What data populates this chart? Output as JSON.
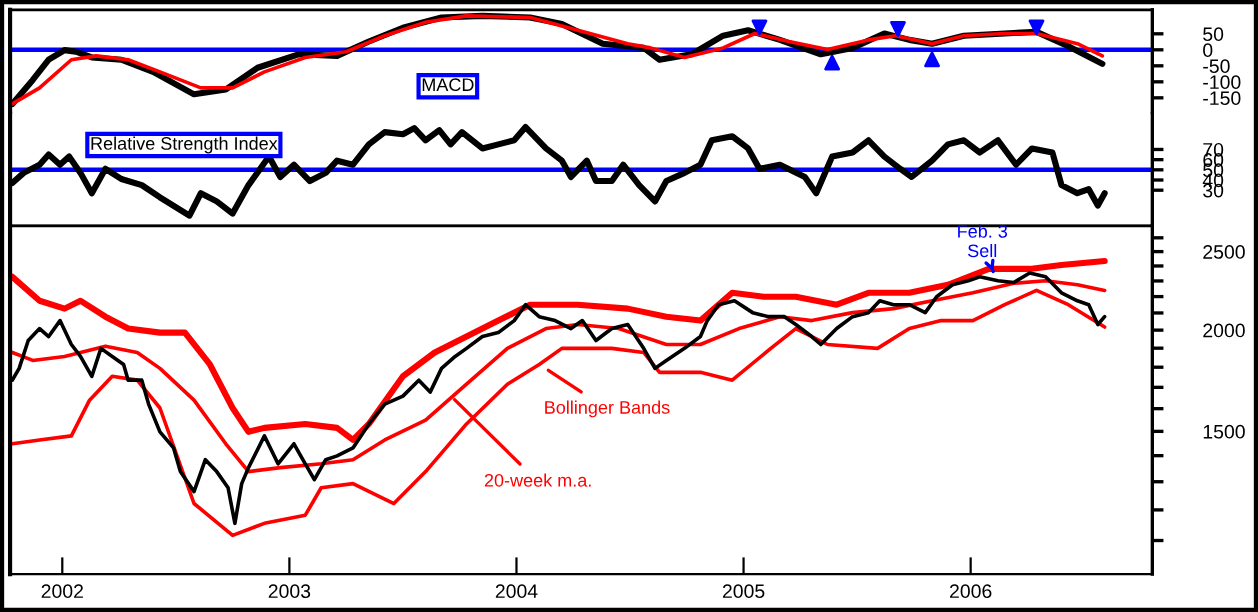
{
  "chart_data": [
    {
      "type": "line",
      "xlim": [
        2001.77,
        2006.8
      ],
      "ylim": [
        -200,
        125
      ],
      "yticks": [
        50,
        0,
        -50,
        -100,
        -150
      ],
      "tick_labels": "y",
      "legend": false,
      "grid": false,
      "annotations": [
        "MACD"
      ],
      "ref_lines": [
        {
          "axis": "y",
          "value": 0,
          "color": "#0000ff"
        }
      ],
      "series": [
        {
          "color": "#000000",
          "x": [
            2001.78,
            2001.87,
            2001.94,
            2002.01,
            2002.06,
            2002.13,
            2002.26,
            2002.4,
            2002.58,
            2002.72,
            2002.86,
            2003.04,
            2003.21,
            2003.35,
            2003.5,
            2003.67,
            2003.85,
            2004.06,
            2004.2,
            2004.38,
            2004.56,
            2004.63,
            2004.77,
            2004.91,
            2005.02,
            2005.16,
            2005.34,
            2005.48,
            2005.62,
            2005.73,
            2005.83,
            2005.97,
            2006.15,
            2006.29,
            2006.43,
            2006.58
          ],
          "values": [
            -169,
            -94,
            -31,
            -1,
            -6,
            -24,
            -31,
            -69,
            -139,
            -124,
            -56,
            -14,
            -19,
            26,
            69,
            101,
            106,
            101,
            81,
            19,
            6,
            -31,
            -14,
            44,
            61,
            31,
            -14,
            6,
            51,
            31,
            19,
            44,
            51,
            56,
            11,
            -44
          ]
        },
        {
          "color": "#ff0000",
          "x": [
            2001.78,
            2001.9,
            2002.04,
            2002.15,
            2002.29,
            2002.43,
            2002.61,
            2002.75,
            2002.89,
            2003.07,
            2003.25,
            2003.42,
            2003.6,
            2003.78,
            2004.06,
            2004.27,
            2004.49,
            2004.59,
            2004.74,
            2004.91,
            2005.05,
            2005.2,
            2005.37,
            2005.55,
            2005.67,
            2005.83,
            2005.97,
            2006.15,
            2006.29,
            2006.47,
            2006.58
          ],
          "values": [
            -169,
            -119,
            -31,
            -19,
            -31,
            -69,
            -119,
            -119,
            -69,
            -24,
            -6,
            44,
            86,
            106,
            101,
            61,
            19,
            6,
            -24,
            6,
            51,
            26,
            1,
            31,
            44,
            19,
            44,
            51,
            51,
            19,
            -19
          ]
        },
        {
          "type": "scatter",
          "marker": "triangle_down",
          "color": "#0000ff",
          "x": [
            2005.07,
            2005.68,
            2006.29
          ],
          "values": [
            70,
            65,
            70
          ]
        },
        {
          "type": "scatter",
          "marker": "triangle",
          "color": "#0000ff",
          "x": [
            2005.39,
            2005.83
          ],
          "values": [
            -40,
            -30
          ]
        }
      ]
    },
    {
      "type": "line",
      "xlim": [
        2001.77,
        2006.8
      ],
      "ylim": [
        -5,
        105
      ],
      "yticks": [
        70,
        60,
        50,
        40,
        30
      ],
      "tick_labels": "y",
      "legend": false,
      "grid": false,
      "annotations": [
        "Relative Strength Index"
      ],
      "ref_lines": [
        {
          "axis": "y",
          "value": 50,
          "color": "#0000ff"
        }
      ],
      "series": [
        {
          "color": "#000000",
          "x": [
            2001.78,
            2001.83,
            2001.9,
            2001.94,
            2001.99,
            2002.03,
            2002.08,
            2002.13,
            2002.19,
            2002.26,
            2002.35,
            2002.43,
            2002.56,
            2002.61,
            2002.68,
            2002.75,
            2002.82,
            2002.91,
            2002.96,
            2003.02,
            2003.09,
            2003.16,
            2003.21,
            2003.28,
            2003.35,
            2003.42,
            2003.5,
            2003.55,
            2003.6,
            2003.66,
            2003.71,
            2003.76,
            2003.85,
            2003.92,
            2003.99,
            2004.04,
            2004.13,
            2004.2,
            2004.24,
            2004.31,
            2004.35,
            2004.42,
            2004.47,
            2004.54,
            2004.61,
            2004.66,
            2004.74,
            2004.81,
            2004.86,
            2004.95,
            2005.02,
            2005.07,
            2005.16,
            2005.27,
            2005.32,
            2005.39,
            2005.48,
            2005.55,
            2005.62,
            2005.69,
            2005.74,
            2005.83,
            2005.9,
            2005.97,
            2006.04,
            2006.12,
            2006.2,
            2006.27,
            2006.36,
            2006.4,
            2006.47,
            2006.52,
            2006.56,
            2006.59
          ],
          "values": [
            37,
            47,
            55,
            65,
            55,
            63,
            47,
            27,
            51,
            41,
            35,
            23,
            5,
            27,
            19,
            7,
            35,
            63,
            43,
            55,
            39,
            47,
            59,
            55,
            75,
            87,
            85,
            91,
            79,
            89,
            75,
            87,
            71,
            75,
            79,
            92,
            71,
            59,
            43,
            59,
            39,
            39,
            55,
            35,
            19,
            39,
            47,
            55,
            79,
            83,
            71,
            51,
            55,
            43,
            27,
            63,
            67,
            79,
            63,
            51,
            43,
            59,
            75,
            79,
            67,
            79,
            55,
            71,
            67,
            35,
            27,
            31,
            15,
            27
          ]
        }
      ]
    },
    {
      "type": "line",
      "xlim": [
        2001.77,
        2006.8
      ],
      "ylim": [
        1000,
        2690
      ],
      "log": true,
      "legend": false,
      "grid": false,
      "xticks": [
        {
          "value": 2002,
          "label": "2002"
        },
        {
          "value": 2003,
          "label": "2003"
        },
        {
          "value": 2004,
          "label": "2004"
        },
        {
          "value": 2005,
          "label": "2005"
        },
        {
          "value": 2006,
          "label": "2006"
        }
      ],
      "yticks": [
        {
          "value": 1100,
          "label": null
        },
        {
          "value": 1200,
          "label": null
        },
        {
          "value": 1300,
          "label": null
        },
        {
          "value": 1400,
          "label": null
        },
        1500,
        {
          "value": 1600,
          "label": null
        },
        {
          "value": 1700,
          "label": null
        },
        {
          "value": 1800,
          "label": null
        },
        {
          "value": 1900,
          "label": null
        },
        2000,
        {
          "value": 2100,
          "label": null
        },
        {
          "value": 2200,
          "label": null
        },
        {
          "value": 2300,
          "label": null
        },
        {
          "value": 2400,
          "label": null
        },
        2500,
        {
          "value": 2600,
          "label": null
        }
      ],
      "annotations": [
        {
          "text": "Bollinger Bands",
          "x": 2004.12,
          "y": 1800
        },
        {
          "text": "20-week m.a.",
          "x": 2003.71,
          "y": 1660
        },
        {
          "text": "Feb. 3\nSell",
          "x": 2006.1,
          "y": 2360
        }
      ],
      "series": [
        {
          "color": "#ff0000",
          "x": [
            2001.78,
            2001.9,
            2002.01,
            2002.08,
            2002.19,
            2002.29,
            2002.43,
            2002.54,
            2002.65,
            2002.75,
            2002.82,
            2002.89,
            2003.07,
            2003.21,
            2003.28,
            2003.35,
            2003.5,
            2003.64,
            2003.78,
            2003.92,
            2004.06,
            2004.27,
            2004.49,
            2004.66,
            2004.81,
            2004.95,
            2005.09,
            2005.23,
            2005.41,
            2005.55,
            2005.73,
            2005.9,
            2006.08,
            2006.26,
            2006.4,
            2006.59
          ],
          "values": [
            2327,
            2174,
            2126,
            2174,
            2078,
            2009,
            1986,
            1986,
            1814,
            1603,
            1498,
            1515,
            1532,
            1515,
            1464,
            1532,
            1754,
            1877,
            1964,
            2055,
            2150,
            2150,
            2126,
            2078,
            2055,
            2224,
            2199,
            2199,
            2150,
            2224,
            2224,
            2275,
            2380,
            2380,
            2407,
            2434
          ]
        },
        {
          "color": "#ff0000",
          "x": [
            2001.78,
            2001.87,
            2002.01,
            2002.19,
            2002.33,
            2002.43,
            2002.58,
            2002.72,
            2002.82,
            2002.96,
            2003.14,
            2003.28,
            2003.42,
            2003.6,
            2003.78,
            2003.96,
            2004.13,
            2004.27,
            2004.45,
            2004.66,
            2004.81,
            2004.98,
            2005.16,
            2005.3,
            2005.48,
            2005.66,
            2005.83,
            2006.01,
            2006.19,
            2006.33,
            2006.47,
            2006.59
          ],
          "values": [
            1877,
            1835,
            1856,
            1911,
            1877,
            1794,
            1639,
            1448,
            1338,
            1353,
            1368,
            1384,
            1464,
            1549,
            1715,
            1899,
            2009,
            2032,
            2009,
            1920,
            1920,
            2009,
            2078,
            2055,
            2102,
            2126,
            2174,
            2224,
            2285,
            2301,
            2275,
            2239
          ]
        },
        {
          "color": "#ff0000",
          "x": [
            2001.78,
            2001.9,
            2002.04,
            2002.12,
            2002.22,
            2002.33,
            2002.43,
            2002.58,
            2002.75,
            2002.89,
            2003.07,
            2003.14,
            2003.28,
            2003.46,
            2003.6,
            2003.78,
            2003.96,
            2004.1,
            2004.2,
            2004.42,
            2004.56,
            2004.63,
            2004.81,
            2004.95,
            2005.12,
            2005.23,
            2005.37,
            2005.59,
            2005.73,
            2005.87,
            2006.01,
            2006.15,
            2006.29,
            2006.43,
            2006.59
          ],
          "values": [
            1448,
            1464,
            1481,
            1639,
            1754,
            1735,
            1603,
            1222,
            1116,
            1155,
            1182,
            1278,
            1293,
            1222,
            1338,
            1532,
            1715,
            1814,
            1899,
            1899,
            1877,
            1774,
            1774,
            1735,
            1899,
            2009,
            1920,
            1899,
            2009,
            2055,
            2055,
            2150,
            2239,
            2150,
            2018
          ]
        },
        {
          "color": "#000000",
          "x": [
            2001.78,
            2001.81,
            2001.85,
            2001.9,
            2001.94,
            2001.99,
            2002.04,
            2002.08,
            2002.13,
            2002.17,
            2002.22,
            2002.27,
            2002.29,
            2002.35,
            2002.38,
            2002.43,
            2002.49,
            2002.52,
            2002.58,
            2002.63,
            2002.68,
            2002.73,
            2002.76,
            2002.79,
            2002.82,
            2002.89,
            2002.95,
            2003.02,
            2003.07,
            2003.11,
            2003.16,
            2003.21,
            2003.28,
            2003.35,
            2003.42,
            2003.5,
            2003.57,
            2003.62,
            2003.67,
            2003.73,
            2003.78,
            2003.85,
            2003.92,
            2003.99,
            2004.04,
            2004.1,
            2004.17,
            2004.24,
            2004.29,
            2004.35,
            2004.42,
            2004.49,
            2004.56,
            2004.61,
            2004.66,
            2004.74,
            2004.81,
            2004.84,
            2004.89,
            2004.96,
            2005.04,
            2005.11,
            2005.18,
            2005.23,
            2005.3,
            2005.34,
            2005.41,
            2005.48,
            2005.55,
            2005.6,
            2005.66,
            2005.73,
            2005.8,
            2005.85,
            2005.92,
            2005.99,
            2006.04,
            2006.12,
            2006.19,
            2006.26,
            2006.33,
            2006.4,
            2006.47,
            2006.52,
            2006.56,
            2006.59
          ],
          "values": [
            1735,
            1794,
            1942,
            2009,
            1964,
            2055,
            1920,
            1856,
            1754,
            1899,
            1856,
            1814,
            1735,
            1735,
            1621,
            1498,
            1431,
            1338,
            1264,
            1384,
            1338,
            1278,
            1155,
            1293,
            1353,
            1481,
            1368,
            1448,
            1368,
            1308,
            1384,
            1399,
            1431,
            1532,
            1621,
            1658,
            1735,
            1677,
            1794,
            1856,
            1899,
            1964,
            1986,
            2055,
            2150,
            2078,
            2055,
            2009,
            2055,
            1942,
            2009,
            2032,
            1899,
            1794,
            1835,
            1899,
            1964,
            2055,
            2150,
            2174,
            2102,
            2078,
            2078,
            2032,
            1964,
            1920,
            2009,
            2078,
            2102,
            2174,
            2150,
            2150,
            2102,
            2199,
            2275,
            2301,
            2327,
            2301,
            2290,
            2353,
            2327,
            2224,
            2174,
            2150,
            2032,
            2078
          ]
        }
      ]
    }
  ]
}
